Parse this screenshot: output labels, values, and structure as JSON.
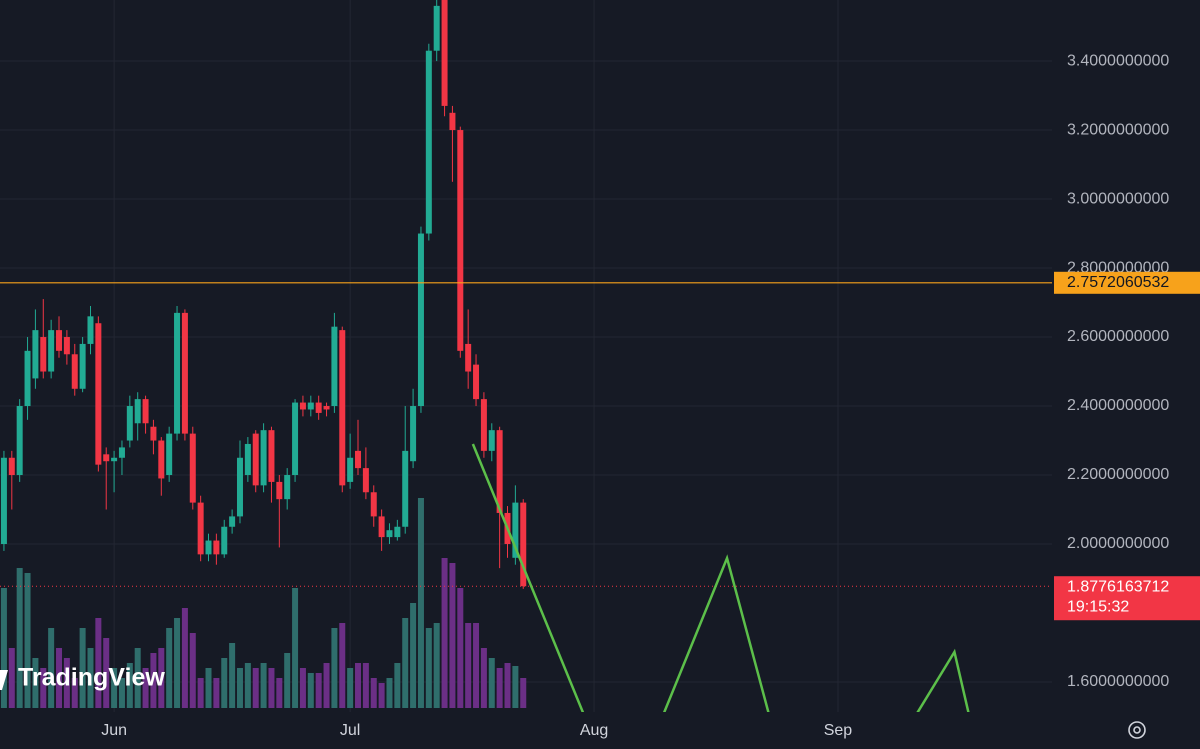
{
  "chart_data": {
    "type": "candlestick",
    "brand": "TradingView",
    "xlim": [
      -0.5,
      133.2
    ],
    "xticks": [
      {
        "value": 14,
        "label": "Jun"
      },
      {
        "value": 44,
        "label": "Jul"
      },
      {
        "value": 75,
        "label": "Aug"
      },
      {
        "value": 106,
        "label": "Sep"
      }
    ],
    "ylim": [
      1.513,
      3.577
    ],
    "yticks": [
      {
        "value": 1.6,
        "label": "1.6000000000"
      },
      {
        "value": 2.0,
        "label": "2.0000000000"
      },
      {
        "value": 2.2,
        "label": "2.2000000000"
      },
      {
        "value": 2.4,
        "label": "2.4000000000"
      },
      {
        "value": 2.6,
        "label": "2.6000000000"
      },
      {
        "value": 2.8,
        "label": "2.8000000000"
      },
      {
        "value": 3.0,
        "label": "3.0000000000"
      },
      {
        "value": 3.2,
        "label": "3.2000000000"
      },
      {
        "value": 3.4,
        "label": "3.4000000000"
      }
    ],
    "grid": true,
    "up_color": "#22ab94",
    "down_color": "#f23645",
    "volume_up_color": "#2f6e6c",
    "volume_down_color": "#6b2f86",
    "open": [
      2.0,
      2.25,
      2.2,
      2.4,
      2.48,
      2.6,
      2.5,
      2.62,
      2.6,
      2.55,
      2.45,
      2.58,
      2.64,
      2.26,
      2.24,
      2.25,
      2.3,
      2.35,
      2.42,
      2.34,
      2.3,
      2.2,
      2.32,
      2.67,
      2.32,
      2.12,
      1.97,
      2.01,
      1.97,
      2.05,
      2.08,
      2.2,
      2.32,
      2.17,
      2.33,
      2.18,
      2.13,
      2.2,
      2.41,
      2.39,
      2.41,
      2.4,
      2.4,
      2.62,
      2.18,
      2.27,
      2.22,
      2.15,
      2.08,
      2.02,
      2.02,
      2.05,
      2.24,
      2.4,
      2.9,
      3.43,
      3.6,
      3.25,
      3.2,
      2.58,
      2.52,
      2.42,
      2.27,
      2.33,
      2.09,
      1.96,
      2.12
    ],
    "high": [
      2.27,
      2.27,
      2.42,
      2.6,
      2.68,
      2.71,
      2.65,
      2.66,
      2.62,
      2.58,
      2.6,
      2.69,
      2.66,
      2.28,
      2.27,
      2.3,
      2.43,
      2.44,
      2.43,
      2.36,
      2.31,
      2.34,
      2.69,
      2.68,
      2.34,
      2.14,
      2.03,
      2.03,
      2.07,
      2.1,
      2.3,
      2.31,
      2.33,
      2.35,
      2.34,
      2.2,
      2.22,
      2.42,
      2.43,
      2.43,
      2.43,
      2.41,
      2.67,
      2.63,
      2.32,
      2.36,
      2.28,
      2.17,
      2.1,
      2.06,
      2.07,
      2.4,
      2.45,
      2.92,
      3.45,
      3.58,
      3.6,
      3.27,
      3.21,
      2.68,
      2.55,
      2.44,
      2.35,
      2.34,
      2.11,
      2.17,
      2.13
    ],
    "low": [
      1.98,
      2.1,
      2.18,
      2.36,
      2.45,
      2.48,
      2.48,
      2.54,
      2.52,
      2.43,
      2.44,
      2.55,
      2.21,
      2.1,
      2.15,
      2.2,
      2.28,
      2.3,
      2.32,
      2.26,
      2.14,
      2.18,
      2.3,
      2.3,
      2.1,
      1.95,
      1.95,
      1.94,
      1.96,
      2.03,
      2.06,
      2.18,
      2.15,
      2.15,
      2.12,
      1.99,
      2.1,
      2.18,
      2.37,
      2.37,
      2.36,
      2.37,
      2.38,
      2.15,
      2.16,
      2.2,
      2.13,
      2.05,
      1.98,
      2.0,
      2.01,
      2.03,
      2.22,
      2.38,
      2.88,
      3.4,
      3.24,
      3.05,
      2.54,
      2.45,
      2.4,
      2.25,
      2.24,
      1.93,
      1.96,
      1.94,
      1.87
    ],
    "close": [
      2.25,
      2.2,
      2.4,
      2.56,
      2.62,
      2.5,
      2.62,
      2.56,
      2.55,
      2.45,
      2.58,
      2.66,
      2.23,
      2.24,
      2.25,
      2.28,
      2.4,
      2.42,
      2.35,
      2.3,
      2.19,
      2.32,
      2.67,
      2.32,
      2.12,
      1.97,
      2.01,
      1.97,
      2.05,
      2.08,
      2.25,
      2.29,
      2.17,
      2.33,
      2.18,
      2.13,
      2.2,
      2.41,
      2.39,
      2.41,
      2.38,
      2.39,
      2.63,
      2.17,
      2.25,
      2.22,
      2.15,
      2.08,
      2.02,
      2.04,
      2.05,
      2.27,
      2.4,
      2.9,
      3.43,
      3.56,
      3.27,
      3.2,
      2.56,
      2.5,
      2.42,
      2.27,
      2.33,
      2.09,
      2.0,
      2.12,
      1.8776163712
    ],
    "volume": [
      120,
      60,
      140,
      135,
      50,
      40,
      80,
      60,
      50,
      30,
      80,
      60,
      90,
      70,
      40,
      30,
      45,
      60,
      40,
      55,
      60,
      80,
      90,
      100,
      75,
      30,
      40,
      30,
      50,
      65,
      40,
      45,
      40,
      45,
      40,
      30,
      55,
      120,
      40,
      35,
      35,
      45,
      80,
      85,
      40,
      45,
      45,
      30,
      25,
      30,
      45,
      90,
      105,
      210,
      80,
      85,
      150,
      145,
      120,
      85,
      85,
      60,
      50,
      40,
      45,
      42,
      30
    ],
    "reference_line": {
      "value": 2.7572060532,
      "label": "2.7572060532",
      "color": "#f7a21b"
    },
    "last_price": {
      "value": 1.8776163712,
      "label": "1.8776163712",
      "countdown": "19:15:32",
      "color": "#f23645"
    },
    "projection": {
      "color": "#5cbf4a",
      "x": [
        59.6,
        73.8,
        83.7,
        91.9,
        97.3,
        115.8,
        120.8,
        122.7
      ],
      "y": [
        2.29,
        1.5,
        1.5,
        1.959,
        1.5,
        1.5,
        1.687,
        1.5
      ]
    }
  }
}
